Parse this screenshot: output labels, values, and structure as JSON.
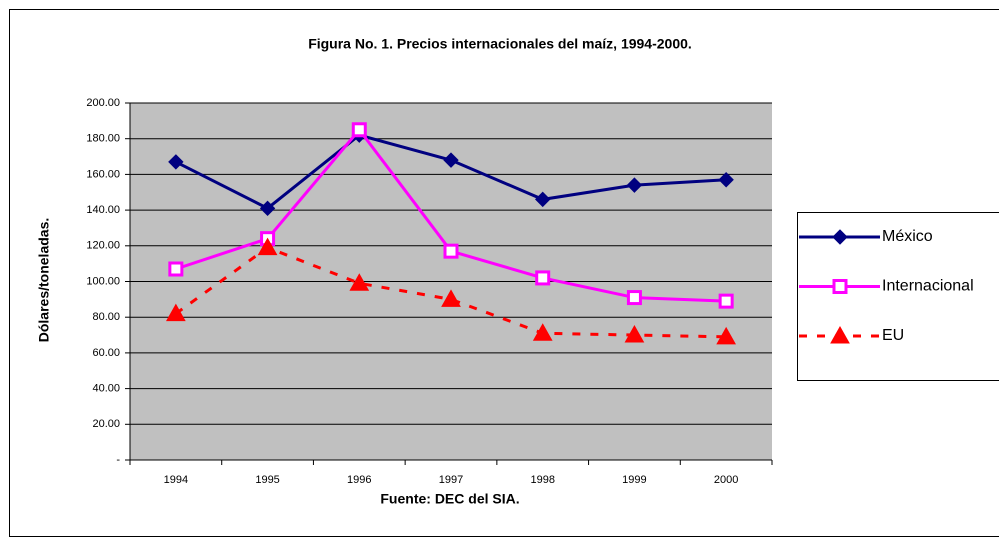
{
  "chart_data": {
    "type": "line",
    "title": "Figura No. 1. Precios internacionales del maíz, 1994-2000.",
    "y_label": "Dólares/toneladas.",
    "x_label": "Fuente: DEC del SIA.",
    "categories": [
      "1994",
      "1995",
      "1996",
      "1997",
      "1998",
      "1999",
      "2000"
    ],
    "series": [
      {
        "name": "México",
        "color": "#000080",
        "marker": "diamond",
        "dashed": false,
        "values": [
          167,
          141,
          182,
          168,
          146,
          154,
          157
        ]
      },
      {
        "name": "Internacional",
        "color": "#ff00ff",
        "marker": "square",
        "dashed": false,
        "values": [
          107,
          124,
          185,
          117,
          102,
          91,
          89
        ]
      },
      {
        "name": "EU",
        "color": "#ff0000",
        "marker": "triangle",
        "dashed": true,
        "values": [
          82,
          119,
          99,
          90,
          71,
          70,
          69
        ]
      }
    ],
    "ylim": [
      0,
      200
    ],
    "yticks": [
      {
        "value": 0,
        "label": "-"
      },
      {
        "value": 20,
        "label": "20.00"
      },
      {
        "value": 40,
        "label": "40.00"
      },
      {
        "value": 60,
        "label": "60.00"
      },
      {
        "value": 80,
        "label": "80.00"
      },
      {
        "value": 100,
        "label": "100.00"
      },
      {
        "value": 120,
        "label": "120.00"
      },
      {
        "value": 140,
        "label": "140.00"
      },
      {
        "value": 160,
        "label": "160.00"
      },
      {
        "value": 180,
        "label": "180.00"
      },
      {
        "value": 200,
        "label": "200.00"
      }
    ],
    "grid": true,
    "plot_background": "#c0c0c0",
    "legend": "right"
  }
}
